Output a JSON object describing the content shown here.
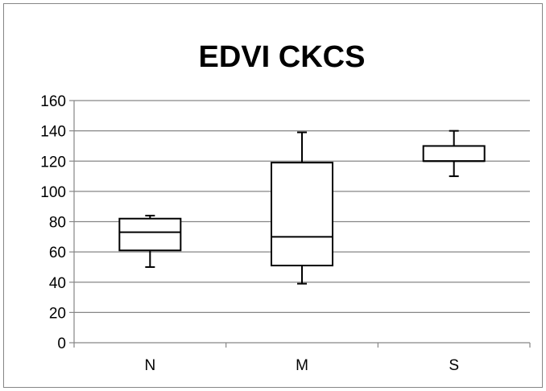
{
  "chart_data": {
    "type": "boxplot",
    "title": "EDVI CKCS",
    "xlabel": "",
    "ylabel": "",
    "categories": [
      "N",
      "M",
      "S"
    ],
    "boxes": [
      {
        "category": "N",
        "min": 50,
        "q1": 61,
        "median": 73,
        "q3": 82,
        "max": 84
      },
      {
        "category": "M",
        "min": 39,
        "q1": 51,
        "median": 70,
        "q3": 119,
        "max": 139
      },
      {
        "category": "S",
        "min": 110,
        "q1": 120,
        "median": 120,
        "q3": 130,
        "max": 140
      }
    ],
    "ylim": [
      0,
      160
    ],
    "yticks": [
      0,
      20,
      40,
      60,
      80,
      100,
      120,
      140,
      160
    ],
    "grid": true,
    "legend": "none",
    "colors": {
      "box_stroke": "#000000",
      "box_fill": "#ffffff",
      "grid": "#868686",
      "axis": "#868686",
      "frame": "#868686"
    }
  }
}
